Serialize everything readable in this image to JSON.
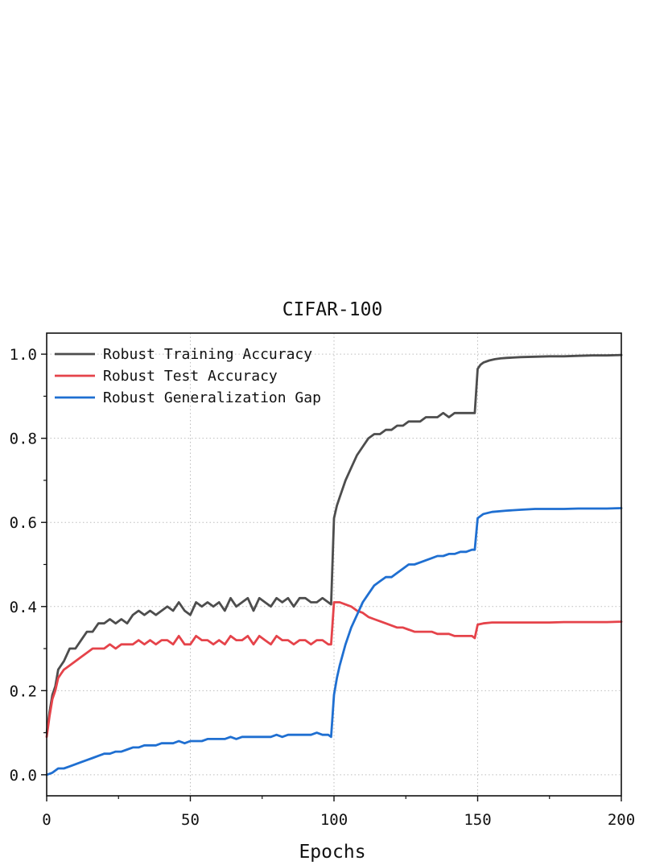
{
  "chart_data": {
    "type": "line",
    "title": "CIFAR-100",
    "xlabel": "Epochs",
    "ylabel": "",
    "xlim": [
      0,
      200
    ],
    "ylim": [
      -0.05,
      1.05
    ],
    "xticks": [
      0,
      50,
      100,
      150,
      200
    ],
    "xtick_labels": [
      "0",
      "50",
      "100",
      "150",
      "200"
    ],
    "yticks": [
      0.0,
      0.2,
      0.4,
      0.6,
      0.8,
      1.0
    ],
    "ytick_labels": [
      "0.0",
      "0.2",
      "0.4",
      "0.6",
      "0.8",
      "1.0"
    ],
    "grid": true,
    "legend_position": "top-left",
    "series": [
      {
        "name": "Robust Training Accuracy",
        "color": "#4d4d4d",
        "x": [
          0,
          1,
          2,
          3,
          4,
          5,
          6,
          8,
          10,
          12,
          14,
          16,
          18,
          20,
          22,
          24,
          26,
          28,
          30,
          32,
          34,
          36,
          38,
          40,
          42,
          44,
          46,
          48,
          50,
          52,
          54,
          56,
          58,
          60,
          62,
          64,
          66,
          68,
          70,
          72,
          74,
          76,
          78,
          80,
          82,
          84,
          86,
          88,
          90,
          92,
          94,
          96,
          98,
          99,
          100,
          101,
          102,
          104,
          106,
          108,
          110,
          112,
          114,
          116,
          118,
          120,
          122,
          124,
          126,
          128,
          130,
          132,
          134,
          136,
          138,
          140,
          142,
          144,
          146,
          148,
          149,
          150,
          151,
          152,
          154,
          156,
          158,
          160,
          165,
          170,
          175,
          180,
          185,
          190,
          195,
          200
        ],
        "y": [
          0.1,
          0.15,
          0.19,
          0.21,
          0.25,
          0.26,
          0.27,
          0.3,
          0.3,
          0.32,
          0.34,
          0.34,
          0.36,
          0.36,
          0.37,
          0.36,
          0.37,
          0.36,
          0.38,
          0.39,
          0.38,
          0.39,
          0.38,
          0.39,
          0.4,
          0.39,
          0.41,
          0.39,
          0.38,
          0.41,
          0.4,
          0.41,
          0.4,
          0.41,
          0.39,
          0.42,
          0.4,
          0.41,
          0.42,
          0.39,
          0.42,
          0.41,
          0.4,
          0.42,
          0.41,
          0.42,
          0.4,
          0.42,
          0.42,
          0.41,
          0.41,
          0.42,
          0.41,
          0.405,
          0.61,
          0.64,
          0.66,
          0.7,
          0.73,
          0.76,
          0.78,
          0.8,
          0.81,
          0.81,
          0.82,
          0.82,
          0.83,
          0.83,
          0.84,
          0.84,
          0.84,
          0.85,
          0.85,
          0.85,
          0.86,
          0.85,
          0.86,
          0.86,
          0.86,
          0.86,
          0.86,
          0.965,
          0.975,
          0.98,
          0.985,
          0.988,
          0.99,
          0.991,
          0.993,
          0.994,
          0.995,
          0.995,
          0.996,
          0.997,
          0.997,
          0.998
        ]
      },
      {
        "name": "Robust Test Accuracy",
        "color": "#e5434a",
        "x": [
          0,
          1,
          2,
          3,
          4,
          5,
          6,
          8,
          10,
          12,
          14,
          16,
          18,
          20,
          22,
          24,
          26,
          28,
          30,
          32,
          34,
          36,
          38,
          40,
          42,
          44,
          46,
          48,
          50,
          52,
          54,
          56,
          58,
          60,
          62,
          64,
          66,
          68,
          70,
          72,
          74,
          76,
          78,
          80,
          82,
          84,
          86,
          88,
          90,
          92,
          94,
          96,
          98,
          99,
          100,
          102,
          104,
          106,
          108,
          110,
          112,
          114,
          116,
          118,
          120,
          122,
          124,
          126,
          128,
          130,
          132,
          134,
          136,
          138,
          140,
          142,
          144,
          146,
          148,
          149,
          150,
          152,
          155,
          160,
          165,
          170,
          175,
          180,
          185,
          190,
          195,
          200
        ],
        "y": [
          0.09,
          0.14,
          0.18,
          0.2,
          0.23,
          0.24,
          0.25,
          0.26,
          0.27,
          0.28,
          0.29,
          0.3,
          0.3,
          0.3,
          0.31,
          0.3,
          0.31,
          0.31,
          0.31,
          0.32,
          0.31,
          0.32,
          0.31,
          0.32,
          0.32,
          0.31,
          0.33,
          0.31,
          0.31,
          0.33,
          0.32,
          0.32,
          0.31,
          0.32,
          0.31,
          0.33,
          0.32,
          0.32,
          0.33,
          0.31,
          0.33,
          0.32,
          0.31,
          0.33,
          0.32,
          0.32,
          0.31,
          0.32,
          0.32,
          0.31,
          0.32,
          0.32,
          0.31,
          0.31,
          0.41,
          0.41,
          0.405,
          0.4,
          0.39,
          0.385,
          0.375,
          0.37,
          0.365,
          0.36,
          0.355,
          0.35,
          0.35,
          0.345,
          0.34,
          0.34,
          0.34,
          0.34,
          0.335,
          0.335,
          0.335,
          0.33,
          0.33,
          0.33,
          0.33,
          0.325,
          0.357,
          0.36,
          0.362,
          0.362,
          0.362,
          0.362,
          0.362,
          0.363,
          0.363,
          0.363,
          0.363,
          0.364
        ]
      },
      {
        "name": "Robust Generalization Gap",
        "color": "#1f6fd1",
        "x": [
          0,
          2,
          4,
          6,
          8,
          10,
          12,
          14,
          16,
          18,
          20,
          22,
          24,
          26,
          28,
          30,
          32,
          34,
          36,
          38,
          40,
          42,
          44,
          46,
          48,
          50,
          52,
          54,
          56,
          58,
          60,
          62,
          64,
          66,
          68,
          70,
          72,
          74,
          76,
          78,
          80,
          82,
          84,
          86,
          88,
          90,
          92,
          94,
          96,
          98,
          99,
          100,
          101,
          102,
          104,
          106,
          108,
          110,
          112,
          114,
          116,
          118,
          120,
          122,
          124,
          126,
          128,
          130,
          132,
          134,
          136,
          138,
          140,
          142,
          144,
          146,
          148,
          149,
          150,
          152,
          155,
          160,
          165,
          170,
          175,
          180,
          185,
          190,
          195,
          200
        ],
        "y": [
          0.0,
          0.005,
          0.015,
          0.015,
          0.02,
          0.025,
          0.03,
          0.035,
          0.04,
          0.045,
          0.05,
          0.05,
          0.055,
          0.055,
          0.06,
          0.065,
          0.065,
          0.07,
          0.07,
          0.07,
          0.075,
          0.075,
          0.075,
          0.08,
          0.075,
          0.08,
          0.08,
          0.08,
          0.085,
          0.085,
          0.085,
          0.085,
          0.09,
          0.085,
          0.09,
          0.09,
          0.09,
          0.09,
          0.09,
          0.09,
          0.095,
          0.09,
          0.095,
          0.095,
          0.095,
          0.095,
          0.095,
          0.1,
          0.095,
          0.095,
          0.09,
          0.19,
          0.23,
          0.26,
          0.31,
          0.35,
          0.38,
          0.41,
          0.43,
          0.45,
          0.46,
          0.47,
          0.47,
          0.48,
          0.49,
          0.5,
          0.5,
          0.505,
          0.51,
          0.515,
          0.52,
          0.52,
          0.525,
          0.525,
          0.53,
          0.53,
          0.535,
          0.535,
          0.61,
          0.62,
          0.625,
          0.628,
          0.63,
          0.632,
          0.632,
          0.632,
          0.633,
          0.633,
          0.633,
          0.634
        ]
      }
    ]
  }
}
